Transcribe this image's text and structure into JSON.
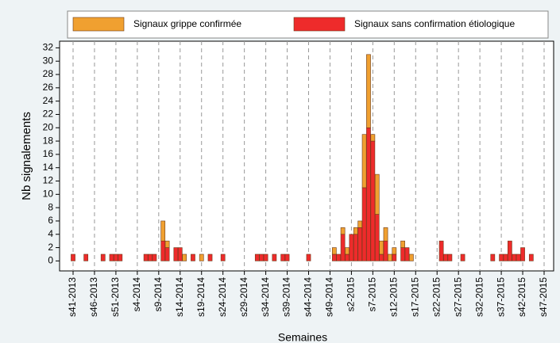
{
  "chart_data": {
    "type": "bar",
    "stacked": true,
    "x_label": "Semaines",
    "y_label": "Nb signalements",
    "categories": [
      "s41-2013",
      null,
      null,
      null,
      null,
      "s46-2013",
      null,
      null,
      null,
      null,
      "s51-2013",
      null,
      null,
      null,
      null,
      "s4-2014",
      null,
      null,
      null,
      null,
      "s9-2014",
      null,
      null,
      null,
      null,
      "s14-2014",
      null,
      null,
      null,
      null,
      "s19-2014",
      null,
      null,
      null,
      null,
      "s24-2014",
      null,
      null,
      null,
      null,
      "s29-2014",
      null,
      null,
      null,
      null,
      "s34-2014",
      null,
      null,
      null,
      null,
      "s39-2014",
      null,
      null,
      null,
      null,
      "s44-2014",
      null,
      null,
      null,
      null,
      "s49-2014",
      null,
      null,
      null,
      null,
      "s2-2015",
      null,
      null,
      null,
      null,
      "s7-2015",
      null,
      null,
      null,
      null,
      "s12-2015",
      null,
      null,
      null,
      null,
      "s17-2015",
      null,
      null,
      null,
      null,
      "s22-2015",
      null,
      null,
      null,
      null,
      "s27-2015",
      null,
      null,
      null,
      null,
      "s32-2015",
      null,
      null,
      null,
      null,
      "s37-2015",
      null,
      null,
      null,
      null,
      "s42-2015",
      null,
      null,
      null,
      null,
      "s47-2015"
    ],
    "series": [
      {
        "name": "Signaux sans confirmation étiologique",
        "color": "#ee2b2b",
        "values": [
          1,
          0,
          0,
          1,
          0,
          0,
          0,
          1,
          0,
          1,
          1,
          1,
          0,
          0,
          0,
          0,
          0,
          1,
          1,
          1,
          0,
          3,
          2,
          0,
          2,
          2,
          0,
          0,
          1,
          0,
          0,
          0,
          1,
          0,
          0,
          1,
          0,
          0,
          0,
          0,
          0,
          0,
          0,
          1,
          1,
          1,
          0,
          1,
          0,
          1,
          1,
          0,
          0,
          0,
          0,
          1,
          0,
          0,
          0,
          0,
          0,
          1,
          1,
          4,
          1,
          4,
          4,
          5,
          11,
          20,
          18,
          7,
          1,
          3,
          0,
          1,
          0,
          2,
          2,
          0,
          0,
          0,
          0,
          0,
          0,
          0,
          3,
          1,
          1,
          0,
          0,
          1,
          0,
          0,
          0,
          0,
          0,
          0,
          1,
          0,
          1,
          1,
          3,
          1,
          1,
          2,
          0,
          1,
          0,
          0,
          0
        ]
      },
      {
        "name": "Signaux grippe confirmée",
        "color": "#f0a030",
        "values": [
          0,
          0,
          0,
          0,
          0,
          0,
          0,
          0,
          0,
          0,
          0,
          0,
          0,
          0,
          0,
          0,
          0,
          0,
          0,
          0,
          0,
          3,
          1,
          0,
          0,
          0,
          1,
          0,
          0,
          0,
          1,
          0,
          0,
          0,
          0,
          0,
          0,
          0,
          0,
          0,
          0,
          0,
          0,
          0,
          0,
          0,
          0,
          0,
          0,
          0,
          0,
          0,
          0,
          0,
          0,
          0,
          0,
          0,
          0,
          0,
          0,
          1,
          0,
          1,
          1,
          0,
          1,
          1,
          8,
          11,
          1,
          6,
          2,
          2,
          1,
          1,
          0,
          1,
          0,
          1,
          0,
          0,
          0,
          0,
          0,
          0,
          0,
          0,
          0,
          0,
          0,
          0,
          0,
          0,
          0,
          0,
          0,
          0,
          0,
          0,
          0,
          0,
          0,
          0,
          0,
          0,
          0,
          0,
          0,
          0,
          0
        ]
      }
    ],
    "legend_order": [
      1,
      0
    ],
    "ylim": [
      -1.5,
      33
    ],
    "yticks": [
      0,
      2,
      4,
      6,
      8,
      10,
      12,
      14,
      16,
      18,
      20,
      22,
      24,
      26,
      28,
      30,
      32
    ],
    "grid": "x-dashed"
  }
}
